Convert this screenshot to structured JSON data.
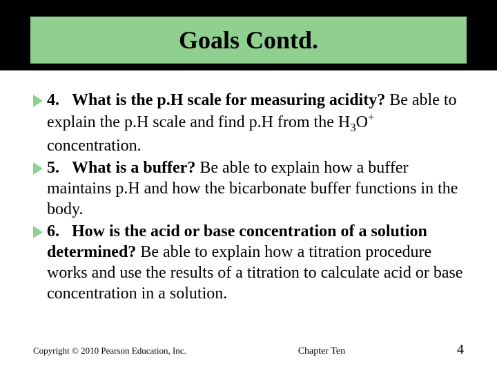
{
  "title": "Goals Contd.",
  "goals": [
    {
      "num": "4.",
      "question": "What is the p.H scale for measuring acidity?",
      "rest_pre": " Be able to explain the p.H scale and find p.H from the H",
      "sub1": "3",
      "mid1": "O",
      "sup1": "+",
      "rest_post": " concentration."
    },
    {
      "num": "5.",
      "question": "What is a buffer?",
      "rest": " Be able to explain how a buffer maintains p.H and how the bicarbonate buffer functions in the body."
    },
    {
      "num": "6.",
      "question": "How is the acid or base concentration of a solution determined?",
      "rest": " Be able to explain how a titration procedure works and use the results of a titration to calculate acid or base concentration in a solution."
    }
  ],
  "footer": {
    "copyright": "Copyright © 2010 Pearson Education, Inc.",
    "chapter": "Chapter Ten",
    "page": "4"
  }
}
